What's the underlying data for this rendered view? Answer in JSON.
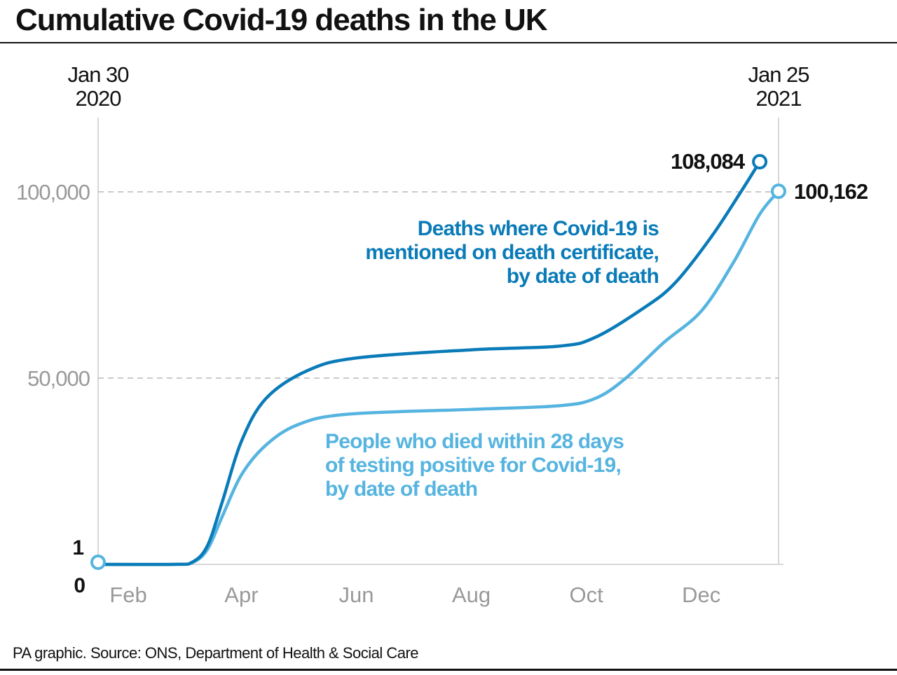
{
  "title": "Cumulative Covid-19 deaths in the UK",
  "source": "PA graphic. Source: ONS, Department of Health & Social Care",
  "chart_data": {
    "type": "line",
    "title": "Cumulative Covid-19 deaths in the UK",
    "x_range": [
      "2020-01-30",
      "2021-01-25"
    ],
    "x_start_label": [
      "Jan 30",
      "2020"
    ],
    "x_end_label": [
      "Jan 25",
      "2021"
    ],
    "x_tick_labels": [
      "Feb",
      "Apr",
      "Jun",
      "Aug",
      "Oct",
      "Dec"
    ],
    "x_tick_dates": [
      "2020-02-15",
      "2020-04-15",
      "2020-06-15",
      "2020-08-15",
      "2020-10-15",
      "2020-12-15"
    ],
    "y_range": [
      0,
      115000
    ],
    "y_ticks": [
      {
        "value": 100000,
        "label": "100,000"
      },
      {
        "value": 50000,
        "label": "50,000"
      }
    ],
    "y_min_labels": [
      "1",
      "0"
    ],
    "grid": "horizontal dashed",
    "series": [
      {
        "name": "Deaths where Covid-19 is mentioned on death certificate, by date of death",
        "label_lines": [
          "Deaths where Covid-19 is",
          "mentioned on death certificate,",
          "by date of death"
        ],
        "color": "#0a7bb8",
        "end_label": "108,084",
        "points": [
          [
            "2020-01-30",
            1
          ],
          [
            "2020-03-10",
            10
          ],
          [
            "2020-03-20",
            600
          ],
          [
            "2020-03-28",
            5000
          ],
          [
            "2020-04-05",
            17000
          ],
          [
            "2020-04-15",
            33000
          ],
          [
            "2020-04-28",
            44500
          ],
          [
            "2020-05-20",
            52000
          ],
          [
            "2020-06-15",
            55400
          ],
          [
            "2020-08-15",
            57600
          ],
          [
            "2020-10-01",
            58600
          ],
          [
            "2020-10-20",
            61000
          ],
          [
            "2020-11-15",
            69000
          ],
          [
            "2020-12-01",
            75500
          ],
          [
            "2020-12-20",
            87700
          ],
          [
            "2021-01-05",
            100000
          ],
          [
            "2021-01-15",
            108084
          ]
        ]
      },
      {
        "name": "People who died within 28 days of testing positive for Covid-19, by date of death",
        "label_lines": [
          "People who died within 28 days",
          "of testing positive for Covid-19,",
          "by date of death"
        ],
        "color": "#56b4e0",
        "end_label": "100,162",
        "points": [
          [
            "2020-01-30",
            1
          ],
          [
            "2020-03-10",
            10
          ],
          [
            "2020-03-20",
            500
          ],
          [
            "2020-03-28",
            4000
          ],
          [
            "2020-04-05",
            13000
          ],
          [
            "2020-04-15",
            24000
          ],
          [
            "2020-04-28",
            32000
          ],
          [
            "2020-05-15",
            37500
          ],
          [
            "2020-06-10",
            40300
          ],
          [
            "2020-08-15",
            41600
          ],
          [
            "2020-10-01",
            42600
          ],
          [
            "2020-10-20",
            44600
          ],
          [
            "2020-11-05",
            50000
          ],
          [
            "2020-11-25",
            59500
          ],
          [
            "2020-12-15",
            68000
          ],
          [
            "2021-01-01",
            81000
          ],
          [
            "2021-01-15",
            94000
          ],
          [
            "2021-01-25",
            100162
          ]
        ]
      }
    ]
  }
}
